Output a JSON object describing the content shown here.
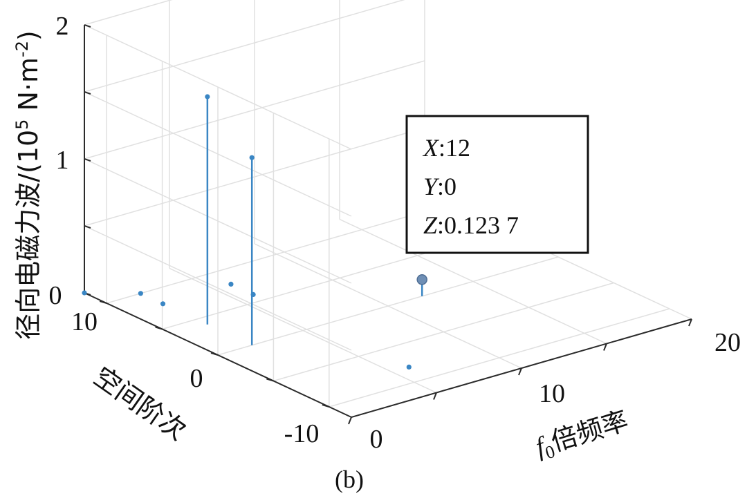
{
  "chart_data": {
    "type": "stem3d",
    "xlabel_var": "f",
    "xlabel_sub": "0",
    "xlabel_rest": "倍频率",
    "ylabel": "空间阶次",
    "zlabel_main": "径向电磁力波/(10",
    "zlabel_exp": "5",
    "zlabel_unit": " N·m",
    "zlabel_unit_exp": "-2",
    "zlabel_close": ")",
    "x_ticks": [
      "0",
      "10",
      "20"
    ],
    "y_ticks": [
      "-10",
      "0",
      "10"
    ],
    "z_ticks": [
      "0",
      "1",
      "2"
    ],
    "xlim": [
      0,
      20
    ],
    "ylim": [
      -12,
      12
    ],
    "zlim": [
      0,
      2
    ],
    "grid": true,
    "stem_color": "#3a86c4",
    "points": [
      {
        "x": 0,
        "y": 12,
        "z": 0
      },
      {
        "x": 2,
        "y": 10,
        "z": 0
      },
      {
        "x": 2,
        "y": 4,
        "z": 1.7
      },
      {
        "x": 2,
        "y": 8,
        "z": 0
      },
      {
        "x": 6,
        "y": 6,
        "z": 0
      },
      {
        "x": 2,
        "y": 0,
        "z": 1.4
      },
      {
        "x": 6,
        "y": 8,
        "z": 0
      },
      {
        "x": 6,
        "y": -8,
        "z": 0
      },
      {
        "x": 12,
        "y": 0,
        "z": 0.1237
      }
    ],
    "datatip": {
      "x_label": "X",
      "x_value": ":12",
      "y_label": "Y",
      "y_value": ":0",
      "z_label": "Z",
      "z_value": ":0.123 7"
    },
    "caption": "(b)"
  }
}
